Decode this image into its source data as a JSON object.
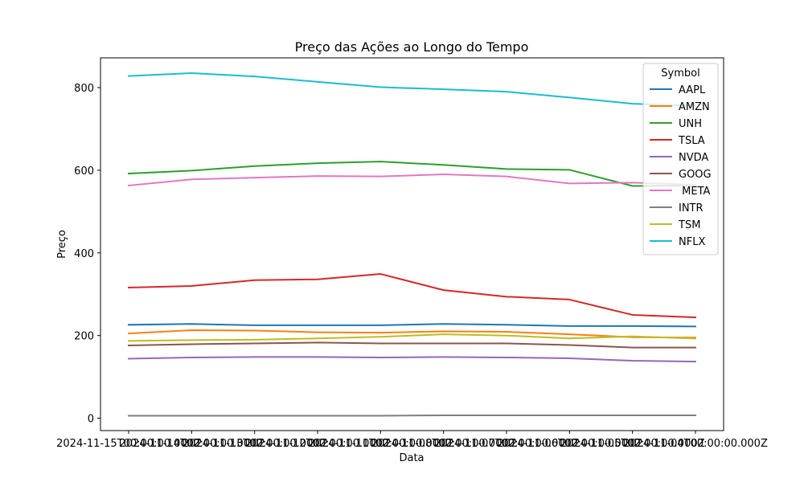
{
  "chart_data": {
    "type": "line",
    "title": "Preço das Ações ao Longo do Tempo",
    "xlabel": "Data",
    "ylabel": "Preço",
    "legend_title": "Symbol",
    "legend_position": "top-right",
    "grid": false,
    "ylim": [
      -30,
      872
    ],
    "yticks": [
      0,
      200,
      400,
      600,
      800
    ],
    "x": [
      "2024-11-15T00:00:00.000Z",
      "2024-11-14T00:00:00.000Z",
      "2024-11-13T00:00:00.000Z",
      "2024-11-12T00:00:00.000Z",
      "2024-11-11T00:00:00.000Z",
      "2024-11-08T00:00:00.000Z",
      "2024-11-07T00:00:00.000Z",
      "2024-11-06T00:00:00.000Z",
      "2024-11-05T00:00:00.000Z",
      "2024-11-04T00:00:00.000Z"
    ],
    "series": [
      {
        "name": "AAPL",
        "color": "#1f77b4",
        "values": [
          226,
          228,
          225,
          225,
          225,
          228,
          226,
          223,
          223,
          222
        ]
      },
      {
        "name": "AMZN",
        "color": "#ff7f0e",
        "values": [
          205,
          213,
          212,
          208,
          207,
          210,
          209,
          203,
          196,
          195
        ]
      },
      {
        "name": "UNH",
        "color": "#2ca02c",
        "values": [
          592,
          599,
          610,
          617,
          621,
          613,
          603,
          601,
          562,
          563
        ]
      },
      {
        "name": "TSLA",
        "color": "#d62728",
        "values": [
          316,
          320,
          334,
          336,
          349,
          310,
          294,
          287,
          250,
          244
        ]
      },
      {
        "name": "NVDA",
        "color": "#9467bd",
        "values": [
          144,
          147,
          148,
          148,
          147,
          148,
          147,
          145,
          139,
          137
        ]
      },
      {
        "name": "GOOG",
        "color": "#8c564b",
        "values": [
          176,
          179,
          181,
          183,
          181,
          181,
          181,
          177,
          171,
          171
        ]
      },
      {
        "name": " META",
        "color": "#e377c2",
        "values": [
          563,
          578,
          582,
          586,
          585,
          590,
          585,
          568,
          570,
          565
        ]
      },
      {
        "name": "INTR",
        "color": "#7f7f7f",
        "values": [
          6,
          6,
          6,
          6,
          6,
          7,
          7,
          7,
          7,
          7
        ]
      },
      {
        "name": "TSM",
        "color": "#bcbd22",
        "values": [
          187,
          189,
          190,
          193,
          197,
          203,
          200,
          193,
          198,
          193
        ]
      },
      {
        "name": "NFLX",
        "color": "#17becf",
        "values": [
          828,
          835,
          827,
          814,
          801,
          796,
          790,
          776,
          761,
          756
        ]
      }
    ]
  }
}
